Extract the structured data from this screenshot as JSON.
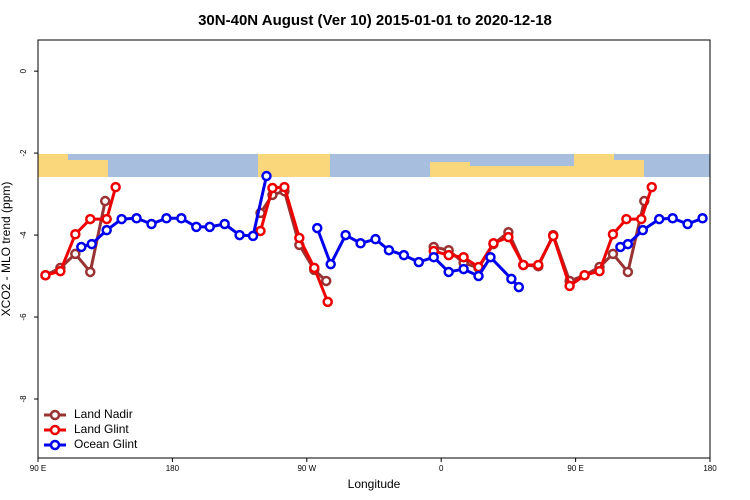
{
  "chart_data": {
    "type": "line",
    "title": "30N-40N August (Ver 10)   2015-01-01 to 2020-12-18",
    "x_label": "Longitude",
    "y_label": "XCO2 - MLO trend (ppm)",
    "xlim": [
      90,
      540
    ],
    "xticks": [
      {
        "value": 90,
        "label": "90 E"
      },
      180,
      {
        "value": 270,
        "label": "90 W"
      },
      {
        "value": 360,
        "label": "0"
      },
      {
        "value": 450,
        "label": "90 E"
      },
      {
        "value": 540,
        "label": "180"
      }
    ],
    "ylim": [
      -9.44,
      0.76
    ],
    "yticks": [
      0,
      -2,
      -4,
      -6,
      -8
    ],
    "legend": "bottom-left",
    "series": [
      {
        "name": "Land Nadir",
        "color": "#993333",
        "x": [
          95,
          105,
          115,
          125,
          135,
          null,
          239,
          247,
          255,
          265,
          275,
          283,
          null,
          355,
          365,
          375,
          385,
          395,
          405,
          415,
          425,
          435,
          446,
          456,
          466,
          475,
          485,
          496
        ],
        "values": [
          -4.98,
          -4.8,
          -4.46,
          -4.9,
          -3.17,
          null,
          -3.46,
          -3.02,
          -2.93,
          -4.24,
          -4.85,
          -5.12,
          null,
          -4.29,
          -4.37,
          -4.68,
          -4.8,
          -4.22,
          -3.93,
          -4.73,
          -4.76,
          -4.0,
          -5.12,
          -4.98,
          -4.78,
          -4.46,
          -4.9,
          -3.17
        ]
      },
      {
        "name": "Land Glint",
        "color": "#ee0000",
        "x": [
          95,
          105,
          115,
          125,
          136,
          142,
          null,
          239,
          247,
          255,
          265,
          275,
          284,
          null,
          355,
          365,
          375,
          385,
          395,
          405,
          415,
          425,
          435,
          446,
          456,
          466,
          475,
          484,
          494,
          501
        ],
        "values": [
          -4.98,
          -4.88,
          -3.98,
          -3.61,
          -3.61,
          -2.83,
          null,
          -3.9,
          -2.85,
          -2.83,
          -4.07,
          -4.8,
          -5.63,
          null,
          -4.39,
          -4.49,
          -4.54,
          -4.78,
          -4.2,
          -4.05,
          -4.73,
          -4.73,
          -4.02,
          -5.24,
          -4.98,
          -4.88,
          -3.98,
          -3.61,
          -3.61,
          -2.83
        ]
      },
      {
        "name": "Ocean Glint",
        "color": "#0000ee",
        "x": [
          119,
          126,
          136,
          146,
          156,
          166,
          176,
          186,
          196,
          205,
          215,
          225,
          234,
          243,
          null,
          277,
          286,
          296,
          306,
          316,
          325,
          335,
          345,
          355,
          365,
          375,
          385,
          393,
          407,
          412,
          null,
          480,
          485,
          495,
          506,
          515,
          525,
          535
        ],
        "values": [
          -4.29,
          -4.22,
          -3.88,
          -3.61,
          -3.59,
          -3.73,
          -3.59,
          -3.59,
          -3.8,
          -3.8,
          -3.73,
          -4.0,
          -4.02,
          -2.56,
          null,
          -3.83,
          -4.71,
          -4.0,
          -4.2,
          -4.1,
          -4.37,
          -4.49,
          -4.66,
          -4.54,
          -4.9,
          -4.83,
          -5.0,
          -4.54,
          -5.07,
          -5.27,
          null,
          -4.29,
          -4.22,
          -3.88,
          -3.61,
          -3.59,
          -3.73,
          -3.59
        ]
      }
    ]
  }
}
